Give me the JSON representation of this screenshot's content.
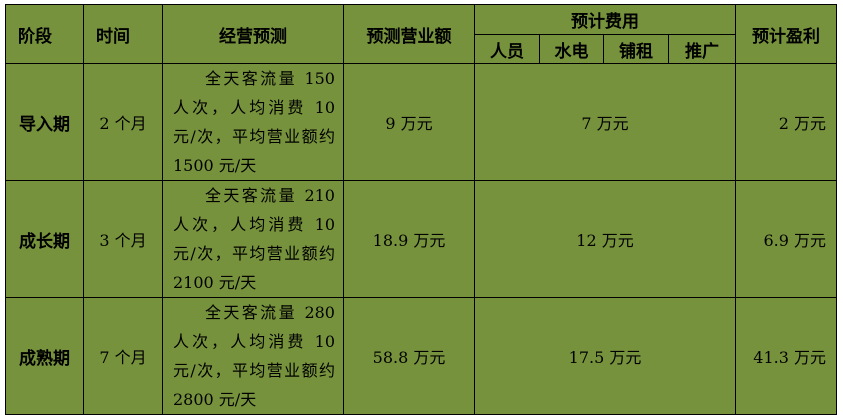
{
  "headers": {
    "stage": "阶段",
    "time": "时间",
    "forecast": "经营预测",
    "revenue": "预测营业额",
    "costs": "预计费用",
    "cost_items": [
      "人员",
      "水电",
      "铺租",
      "推广"
    ],
    "profit": "预计盈利"
  },
  "rows": [
    {
      "stage": "导入期",
      "time": "2 个月",
      "forecast": "全天客流量 150 人次，人均消费 10 元/次，平均营业额约 1500 元/天",
      "revenue": "9 万元",
      "costs": "7 万元",
      "profit": "2 万元"
    },
    {
      "stage": "成长期",
      "time": "3 个月",
      "forecast": "全天客流量 210 人次，人均消费 10 元/次，平均营业额约 2100 元/天",
      "revenue": "18.9 万元",
      "costs": "12 万元",
      "profit": "6.9 万元"
    },
    {
      "stage": "成熟期",
      "time": "7 个月",
      "forecast": "全天客流量 280 人次，人均消费 10 元/次，平均营业额约 2800 元/天",
      "revenue": "58.8 万元",
      "costs": "17.5 万元",
      "profit": "41.3 万元"
    }
  ],
  "colors": {
    "table_background": "#77923c",
    "border": "#000000"
  }
}
